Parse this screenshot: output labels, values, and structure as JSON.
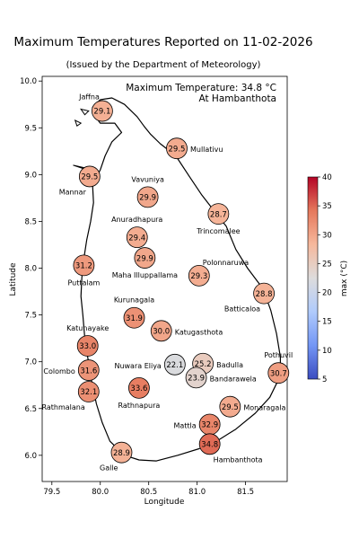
{
  "title": "Maximum Temperatures Reported on 11-02-2026",
  "subtitle": "(Issued by the Department of Meteorology)",
  "annotation": {
    "line1": "Maximum Temperature: 34.8 °C",
    "line2": "At Hambanthota"
  },
  "colorbar": {
    "label": "max (°C)",
    "min": 5,
    "max": 40,
    "ticks": [
      "5",
      "10",
      "15",
      "20",
      "25",
      "30",
      "35",
      "40"
    ],
    "colormap": [
      "#3b4cc0",
      "#7396f5",
      "#b0cbfc",
      "#dddcdc",
      "#f6b89c",
      "#e5785c",
      "#b40426"
    ]
  },
  "chart_data": {
    "type": "scatter",
    "xlabel": "Longitude",
    "ylabel": "Latitude",
    "xlim": [
      79.4,
      81.93
    ],
    "ylim": [
      5.72,
      10.05
    ],
    "xticks": [
      "79.5",
      "80.0",
      "80.5",
      "81.0",
      "81.5"
    ],
    "yticks": [
      "6.0",
      "6.5",
      "7.0",
      "7.5",
      "8.0",
      "8.5",
      "9.0",
      "9.5",
      "10.0"
    ],
    "stations": [
      {
        "name": "Jaffna",
        "lon": 80.02,
        "lat": 9.68,
        "value": 29.1,
        "label_side": "ul"
      },
      {
        "name": "Mullativu",
        "lon": 80.79,
        "lat": 9.28,
        "value": 29.5,
        "label_side": "r"
      },
      {
        "name": "Mannar",
        "lon": 79.89,
        "lat": 8.98,
        "value": 29.5,
        "label_side": "bl"
      },
      {
        "name": "Vavuniya",
        "lon": 80.49,
        "lat": 8.76,
        "value": 29.9,
        "label_side": "u"
      },
      {
        "name": "Trincomalee",
        "lon": 81.22,
        "lat": 8.58,
        "value": 28.7,
        "label_side": "b"
      },
      {
        "name": "Anuradhapura",
        "lon": 80.38,
        "lat": 8.33,
        "value": 29.4,
        "label_side": "u"
      },
      {
        "name": "Maha Illuppallama",
        "lon": 80.46,
        "lat": 8.11,
        "value": 29.9,
        "label_side": "b"
      },
      {
        "name": "Polonnaruwa",
        "lon": 81.02,
        "lat": 7.92,
        "value": 29.3,
        "label_side": "ur"
      },
      {
        "name": "Puttalam",
        "lon": 79.83,
        "lat": 8.03,
        "value": 31.2,
        "label_side": "b"
      },
      {
        "name": "Batticaloa",
        "lon": 81.69,
        "lat": 7.73,
        "value": 28.8,
        "label_side": "bl"
      },
      {
        "name": "Kurunagala",
        "lon": 80.35,
        "lat": 7.47,
        "value": 31.9,
        "label_side": "u"
      },
      {
        "name": "Katugasthota",
        "lon": 80.63,
        "lat": 7.33,
        "value": 30.0,
        "label_side": "r"
      },
      {
        "name": "Katunayake",
        "lon": 79.87,
        "lat": 7.17,
        "value": 33.0,
        "label_side": "u"
      },
      {
        "name": "Pothuvil",
        "lon": 81.84,
        "lat": 6.88,
        "value": 30.7,
        "label_side": "u"
      },
      {
        "name": "Nuwara Eliya",
        "lon": 80.77,
        "lat": 6.97,
        "value": 22.1,
        "label_side": "l"
      },
      {
        "name": "Badulla",
        "lon": 81.06,
        "lat": 6.98,
        "value": 25.2,
        "label_side": "r"
      },
      {
        "name": "Colombo",
        "lon": 79.88,
        "lat": 6.91,
        "value": 31.6,
        "label_side": "l"
      },
      {
        "name": "Rathnapura",
        "lon": 80.4,
        "lat": 6.72,
        "value": 33.6,
        "label_side": "b"
      },
      {
        "name": "Bandarawela",
        "lon": 80.99,
        "lat": 6.83,
        "value": 23.9,
        "label_side": "r"
      },
      {
        "name": "Rathmalana",
        "lon": 79.88,
        "lat": 6.68,
        "value": 32.1,
        "label_side": "bl"
      },
      {
        "name": "Monaragala",
        "lon": 81.34,
        "lat": 6.52,
        "value": 29.5,
        "label_side": "r"
      },
      {
        "name": "Mattla",
        "lon": 81.13,
        "lat": 6.33,
        "value": 32.9,
        "label_side": "l"
      },
      {
        "name": "Hambanthota",
        "lon": 81.13,
        "lat": 6.12,
        "value": 34.8,
        "label_side": "br"
      },
      {
        "name": "Galle",
        "lon": 80.22,
        "lat": 6.03,
        "value": 28.9,
        "label_side": "bl"
      }
    ]
  }
}
